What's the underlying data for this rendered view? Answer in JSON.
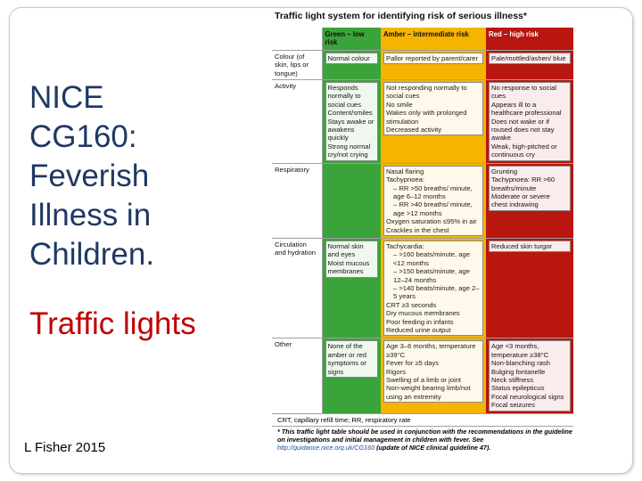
{
  "slide": {
    "title_lines": [
      "NICE",
      "CG160:",
      "Feverish",
      "Illness in",
      "Children."
    ],
    "subtitle": "Traffic lights",
    "author": "L Fisher 2015"
  },
  "document": {
    "title": "Traffic light system for identifying risk of serious illness*",
    "headers": [
      "",
      "Green – low risk",
      "Amber – intermediate risk",
      "Red – high risk"
    ],
    "rows": [
      {
        "category": "Colour (of skin, lips or tongue)",
        "green": [
          "Normal colour"
        ],
        "amber": [
          "Pallor reported by parent/carer"
        ],
        "red": [
          "Pale/mottled/ashen/ blue"
        ]
      },
      {
        "category": "Activity",
        "green": [
          "Responds normally to social cues",
          "Content/smiles",
          "Stays awake or awakens quickly",
          "Strong normal cry/not crying"
        ],
        "amber": [
          "Not responding normally to social cues",
          "No smile",
          "Wakes only with prolonged stimulation",
          "Decreased activity"
        ],
        "red": [
          "No response to social cues",
          "Appears ill to a healthcare professional",
          "Does not wake or if roused does not stay awake",
          "Weak, high-pitched or continuous cry"
        ]
      },
      {
        "category": "Respiratory",
        "green": [],
        "amber": [
          "Nasal flaring",
          "Tachypnoea:",
          "– RR >50 breaths/ minute, age 6–12 months",
          "– RR >40 breaths/ minute, age >12 months",
          "Oxygen saturation ≤95% in air",
          "Crackles in the chest"
        ],
        "red": [
          "Grunting",
          "Tachypnoea: RR >60 breaths/minute",
          "Moderate or severe chest indrawing"
        ]
      },
      {
        "category": "Circulation and hydration",
        "green": [
          "Normal skin and eyes",
          "Moist mucous membranes"
        ],
        "amber": [
          "Tachycardia:",
          "– >160 beats/minute, age <12 months",
          "– >150 beats/minute, age 12–24 months",
          "– >140 beats/minute, age 2–5 years",
          "CRT ≥3 seconds",
          "Dry mucous membranes",
          "Poor feeding in infants",
          "Reduced urine output"
        ],
        "red": [
          "Reduced skin turgor"
        ]
      },
      {
        "category": "Other",
        "green": [
          "None of the amber or red symptoms or signs"
        ],
        "amber": [
          "Age 3–6 months, temperature ≥39°C",
          "Fever for ≥5 days",
          "Rigors",
          "Swelling of a limb or joint",
          "Non-weight bearing limb/not using an extremity"
        ],
        "red": [
          "Age <3 months, temperature ≥38°C",
          "Non-blanching rash",
          "Bulging fontanelle",
          "Neck stiffness",
          "Status epilepticus",
          "Focal neurological signs",
          "Focal seizures"
        ]
      }
    ],
    "footnote_abbrev": "CRT, capillary refill time; RR, respiratory rate",
    "footnote_main": "* This traffic light table should be used in conjunction with the recommendations in the guideline on investigations and initial management in children with fever. See",
    "footnote_link": "http://guidance.nice.org.uk/CG160",
    "footnote_tail": "(update of NICE clinical guideline 47)."
  },
  "colors": {
    "green": "#3aa33a",
    "amber": "#f5b400",
    "red": "#b8160f",
    "title_text": "#1f3864",
    "subtitle_text": "#c00000"
  }
}
